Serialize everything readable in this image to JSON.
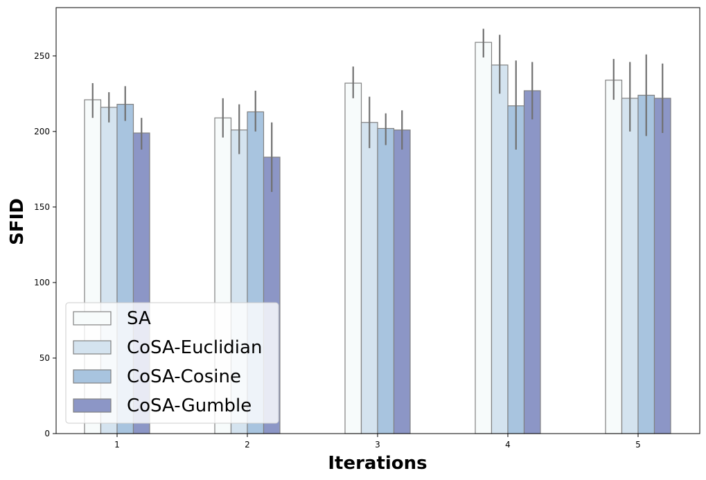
{
  "chart_data": {
    "type": "bar",
    "title": "",
    "xlabel": "Iterations",
    "ylabel": "SFID",
    "categories": [
      "1",
      "2",
      "3",
      "4",
      "5"
    ],
    "ylim": [
      0,
      282
    ],
    "yticks": [
      0,
      50,
      100,
      150,
      200,
      250
    ],
    "series": [
      {
        "name": "SA",
        "color": "#f7fbfb",
        "values": [
          221,
          209,
          232,
          259,
          234
        ],
        "err_low": [
          209,
          196,
          222,
          249,
          221
        ],
        "err_high": [
          232,
          222,
          243,
          268,
          248
        ]
      },
      {
        "name": "CoSA-Euclidian",
        "color": "#d4e3ef",
        "values": [
          216,
          201,
          206,
          244,
          222
        ],
        "err_low": [
          206,
          185,
          189,
          225,
          200
        ],
        "err_high": [
          226,
          218,
          223,
          264,
          246
        ]
      },
      {
        "name": "CoSA-Cosine",
        "color": "#a8c4df",
        "values": [
          218,
          213,
          202,
          217,
          224
        ],
        "err_low": [
          207,
          200,
          191,
          188,
          197
        ],
        "err_high": [
          230,
          227,
          212,
          247,
          251
        ]
      },
      {
        "name": "CoSA-Gumble",
        "color": "#8c96c6",
        "values": [
          199,
          183,
          201,
          227,
          222
        ],
        "err_low": [
          188,
          160,
          188,
          208,
          199
        ],
        "err_high": [
          209,
          206,
          214,
          246,
          245
        ]
      }
    ],
    "legend_position": "lower-left"
  }
}
